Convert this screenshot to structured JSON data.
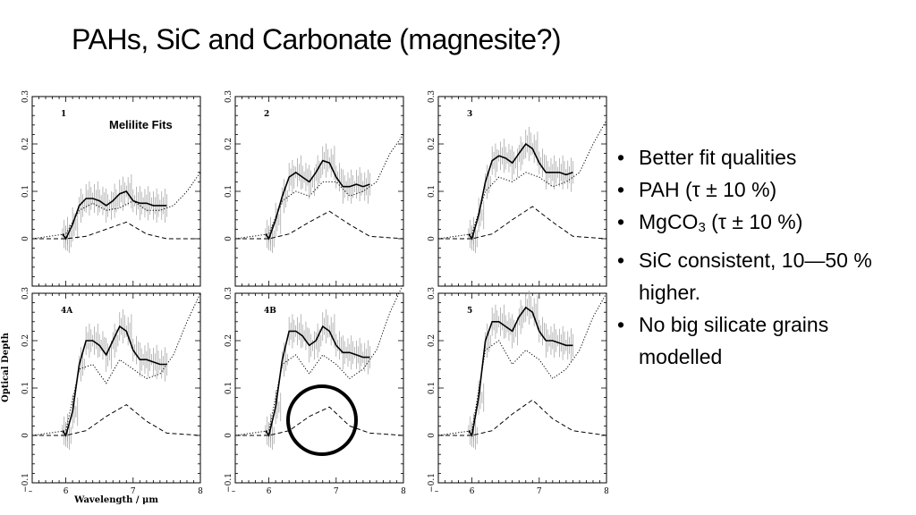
{
  "slide": {
    "title": "PAHs, SiC and Carbonate (magnesite?)"
  },
  "bullets": [
    {
      "text": "Better fit qualities"
    },
    {
      "text": "PAH      (τ  ± 10 %)"
    },
    {
      "pre": "MgCO",
      "sub": "3",
      "post": " (τ ± 10 %)"
    },
    {
      "text": "SiC consistent, 10—50 % higher."
    },
    {
      "text": "No big silicate grains modelled"
    }
  ],
  "overlay": {
    "label": "Melilite Fits",
    "circle_color": "#000000"
  },
  "chart_data": {
    "type": "line",
    "xlabel": "Wavelength / μm",
    "ylabel": "Optical Depth",
    "xlim": [
      5.5,
      8
    ],
    "ylim": [
      -0.1,
      0.3
    ],
    "xticks": [
      "6",
      "7",
      "8"
    ],
    "yticks": [
      "0",
      "0.1",
      "0.2",
      "0.3"
    ],
    "yticks_bottom_panel": [
      "−0.1",
      "0",
      "0.1",
      "0.2",
      "0.3"
    ],
    "panels": [
      {
        "label": "1",
        "series": [
          {
            "style": "solid",
            "x": [
              5.95,
              6.0,
              6.1,
              6.2,
              6.3,
              6.4,
              6.5,
              6.6,
              6.7,
              6.8,
              6.9,
              7.0,
              7.1,
              7.2,
              7.3,
              7.4,
              7.5
            ],
            "y": [
              0.01,
              0.0,
              0.03,
              0.07,
              0.085,
              0.085,
              0.08,
              0.07,
              0.08,
              0.095,
              0.1,
              0.08,
              0.075,
              0.075,
              0.07,
              0.07,
              0.07
            ]
          },
          {
            "style": "dashed",
            "x": [
              5.5,
              6.0,
              6.3,
              6.6,
              6.9,
              7.2,
              7.5,
              8.0
            ],
            "y": [
              0.0,
              0.0,
              0.005,
              0.02,
              0.035,
              0.01,
              0.0,
              0.0
            ]
          },
          {
            "style": "dotted",
            "x": [
              5.5,
              6.0,
              6.2,
              6.4,
              6.6,
              6.8,
              7.0,
              7.2,
              7.4,
              7.6,
              7.8,
              8.0
            ],
            "y": [
              0.0,
              0.01,
              0.06,
              0.075,
              0.06,
              0.065,
              0.08,
              0.06,
              0.06,
              0.07,
              0.1,
              0.14
            ]
          }
        ]
      },
      {
        "label": "2",
        "series": [
          {
            "style": "solid",
            "x": [
              5.95,
              6.0,
              6.1,
              6.2,
              6.3,
              6.4,
              6.5,
              6.6,
              6.7,
              6.8,
              6.9,
              7.0,
              7.1,
              7.2,
              7.3,
              7.4,
              7.5
            ],
            "y": [
              0.01,
              0.0,
              0.04,
              0.09,
              0.13,
              0.14,
              0.13,
              0.12,
              0.14,
              0.165,
              0.16,
              0.13,
              0.11,
              0.11,
              0.115,
              0.11,
              0.115
            ]
          },
          {
            "style": "dashed",
            "x": [
              5.5,
              6.0,
              6.3,
              6.6,
              6.9,
              7.2,
              7.5,
              8.0
            ],
            "y": [
              0.0,
              0.0,
              0.01,
              0.035,
              0.058,
              0.03,
              0.005,
              0.0
            ]
          },
          {
            "style": "dotted",
            "x": [
              5.5,
              6.0,
              6.2,
              6.4,
              6.6,
              6.8,
              7.0,
              7.2,
              7.4,
              7.6,
              7.8,
              8.0
            ],
            "y": [
              0.0,
              0.01,
              0.08,
              0.1,
              0.09,
              0.12,
              0.12,
              0.09,
              0.1,
              0.12,
              0.18,
              0.22
            ]
          }
        ]
      },
      {
        "label": "3",
        "series": [
          {
            "style": "solid",
            "x": [
              5.95,
              6.0,
              6.1,
              6.2,
              6.3,
              6.4,
              6.5,
              6.6,
              6.7,
              6.8,
              6.9,
              7.0,
              7.1,
              7.2,
              7.3,
              7.4,
              7.5
            ],
            "y": [
              0.01,
              0.0,
              0.05,
              0.12,
              0.165,
              0.175,
              0.17,
              0.16,
              0.18,
              0.2,
              0.19,
              0.16,
              0.14,
              0.14,
              0.14,
              0.135,
              0.14
            ]
          },
          {
            "style": "dashed",
            "x": [
              5.5,
              6.0,
              6.3,
              6.6,
              6.9,
              7.2,
              7.5,
              8.0
            ],
            "y": [
              0.0,
              0.0,
              0.01,
              0.04,
              0.068,
              0.035,
              0.005,
              0.0
            ]
          },
          {
            "style": "dotted",
            "x": [
              5.5,
              6.0,
              6.2,
              6.4,
              6.6,
              6.8,
              7.0,
              7.2,
              7.4,
              7.6,
              7.8,
              8.0
            ],
            "y": [
              0.0,
              0.01,
              0.1,
              0.13,
              0.12,
              0.14,
              0.13,
              0.11,
              0.12,
              0.14,
              0.2,
              0.25
            ]
          }
        ]
      },
      {
        "label": "4A",
        "series": [
          {
            "style": "solid",
            "x": [
              5.95,
              6.0,
              6.1,
              6.2,
              6.3,
              6.4,
              6.5,
              6.6,
              6.7,
              6.8,
              6.9,
              7.0,
              7.1,
              7.2,
              7.3,
              7.4,
              7.5
            ],
            "y": [
              0.01,
              0.0,
              0.05,
              0.15,
              0.2,
              0.2,
              0.19,
              0.17,
              0.2,
              0.23,
              0.22,
              0.18,
              0.16,
              0.16,
              0.155,
              0.15,
              0.15
            ]
          },
          {
            "style": "dashed",
            "x": [
              5.5,
              6.0,
              6.3,
              6.6,
              6.9,
              7.2,
              7.5,
              8.0
            ],
            "y": [
              0.0,
              0.0,
              0.01,
              0.04,
              0.065,
              0.03,
              0.005,
              0.0
            ]
          },
          {
            "style": "dotted",
            "x": [
              5.5,
              6.0,
              6.2,
              6.4,
              6.6,
              6.8,
              7.0,
              7.2,
              7.4,
              7.6,
              7.8,
              8.0
            ],
            "y": [
              0.0,
              0.01,
              0.14,
              0.15,
              0.11,
              0.16,
              0.14,
              0.12,
              0.13,
              0.17,
              0.24,
              0.3
            ]
          }
        ]
      },
      {
        "label": "4B",
        "series": [
          {
            "style": "solid",
            "x": [
              5.95,
              6.0,
              6.1,
              6.2,
              6.3,
              6.4,
              6.5,
              6.6,
              6.7,
              6.8,
              6.9,
              7.0,
              7.1,
              7.2,
              7.3,
              7.4,
              7.5
            ],
            "y": [
              0.01,
              0.0,
              0.06,
              0.16,
              0.22,
              0.22,
              0.21,
              0.19,
              0.2,
              0.23,
              0.22,
              0.19,
              0.175,
              0.175,
              0.17,
              0.165,
              0.165
            ]
          },
          {
            "style": "dashed",
            "x": [
              5.5,
              6.0,
              6.3,
              6.6,
              6.9,
              7.2,
              7.5,
              8.0
            ],
            "y": [
              0.0,
              0.0,
              0.01,
              0.04,
              0.06,
              0.02,
              0.005,
              0.0
            ]
          },
          {
            "style": "dotted",
            "x": [
              5.5,
              6.0,
              6.2,
              6.4,
              6.6,
              6.8,
              7.0,
              7.2,
              7.4,
              7.6,
              7.8,
              8.0
            ],
            "y": [
              0.0,
              0.01,
              0.15,
              0.17,
              0.13,
              0.17,
              0.15,
              0.12,
              0.14,
              0.18,
              0.26,
              0.32
            ]
          }
        ]
      },
      {
        "label": "5",
        "series": [
          {
            "style": "solid",
            "x": [
              5.95,
              6.0,
              6.1,
              6.2,
              6.3,
              6.4,
              6.5,
              6.6,
              6.7,
              6.8,
              6.9,
              7.0,
              7.1,
              7.2,
              7.3,
              7.4,
              7.5
            ],
            "y": [
              0.01,
              0.0,
              0.08,
              0.2,
              0.24,
              0.24,
              0.23,
              0.22,
              0.25,
              0.27,
              0.26,
              0.22,
              0.2,
              0.2,
              0.195,
              0.19,
              0.19
            ]
          },
          {
            "style": "dashed",
            "x": [
              5.5,
              6.0,
              6.3,
              6.6,
              6.9,
              7.2,
              7.5,
              8.0
            ],
            "y": [
              0.0,
              0.0,
              0.01,
              0.045,
              0.075,
              0.035,
              0.01,
              0.0
            ]
          },
          {
            "style": "dotted",
            "x": [
              5.5,
              6.0,
              6.2,
              6.4,
              6.6,
              6.8,
              7.0,
              7.2,
              7.4,
              7.6,
              7.8,
              8.0
            ],
            "y": [
              0.0,
              0.01,
              0.18,
              0.2,
              0.15,
              0.18,
              0.16,
              0.12,
              0.14,
              0.18,
              0.25,
              0.3
            ]
          }
        ]
      }
    ]
  }
}
